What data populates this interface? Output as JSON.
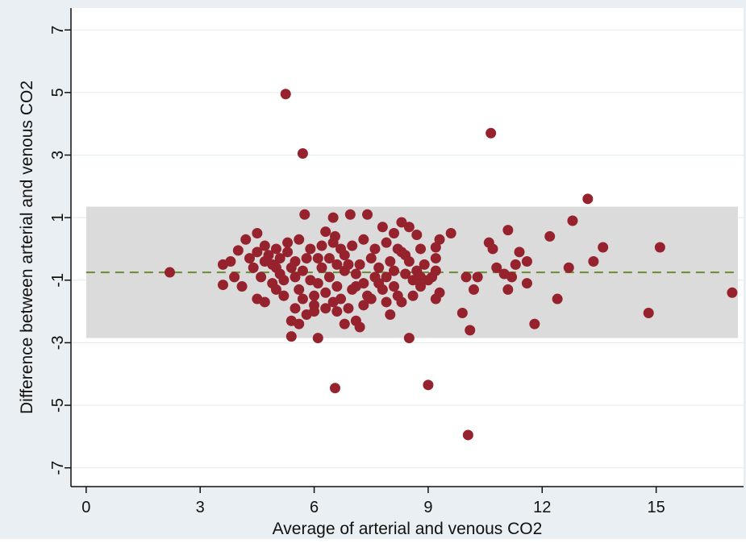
{
  "chart_data": {
    "type": "scatter",
    "title": "",
    "xlabel": "Average of arterial and venous CO2",
    "ylabel": "Difference between arterial and venous CO2",
    "xlim": [
      -0.4,
      17.3
    ],
    "ylim": [
      -7.6,
      7.7
    ],
    "xticks": [
      0,
      3,
      6,
      9,
      12,
      15
    ],
    "yticks": [
      -7,
      -5,
      -3,
      -1,
      1,
      3,
      5,
      7
    ],
    "grid": true,
    "legend": "none",
    "mean_difference": -0.75,
    "limits_of_agreement": [
      -2.85,
      1.35
    ],
    "colors": {
      "background": "#e9eff3",
      "plot_area": "#ffffff",
      "band": "#dbdbdb",
      "mean_line": "#6f8f3a",
      "points": "#95222c",
      "gridline": "#e6edf1"
    },
    "points": [
      [
        2.2,
        -0.75
      ],
      [
        5.25,
        4.95
      ],
      [
        5.7,
        3.05
      ],
      [
        10.65,
        3.7
      ],
      [
        13.2,
        1.6
      ],
      [
        12.8,
        0.9
      ],
      [
        11.1,
        0.6
      ],
      [
        12.2,
        0.4
      ],
      [
        13.6,
        0.05
      ],
      [
        15.1,
        0.05
      ],
      [
        17.0,
        -1.4
      ],
      [
        14.8,
        -2.05
      ],
      [
        12.7,
        -0.6
      ],
      [
        13.35,
        -0.4
      ],
      [
        12.4,
        -1.6
      ],
      [
        11.8,
        -2.4
      ],
      [
        11.6,
        -1.1
      ],
      [
        11.6,
        -0.4
      ],
      [
        11.4,
        -0.1
      ],
      [
        11.3,
        -0.5
      ],
      [
        11.2,
        -0.9
      ],
      [
        11.1,
        -1.3
      ],
      [
        11.0,
        -0.8
      ],
      [
        10.8,
        -0.6
      ],
      [
        10.7,
        0.0
      ],
      [
        10.6,
        0.2
      ],
      [
        10.3,
        -0.9
      ],
      [
        10.2,
        -1.3
      ],
      [
        10.0,
        -0.9
      ],
      [
        9.9,
        -2.05
      ],
      [
        10.1,
        -2.6
      ],
      [
        9.0,
        -4.35
      ],
      [
        10.05,
        -5.95
      ],
      [
        6.55,
        -4.45
      ],
      [
        8.5,
        -2.85
      ],
      [
        6.1,
        -2.85
      ],
      [
        5.4,
        -2.8
      ],
      [
        9.2,
        -1.6
      ],
      [
        9.3,
        -1.4
      ],
      [
        9.0,
        -1.0
      ],
      [
        9.2,
        -0.7
      ],
      [
        9.2,
        -0.3
      ],
      [
        9.2,
        0.05
      ],
      [
        9.3,
        0.3
      ],
      [
        9.6,
        0.5
      ],
      [
        9.1,
        -0.9
      ],
      [
        8.8,
        0.0
      ],
      [
        8.7,
        0.45
      ],
      [
        8.5,
        0.7
      ],
      [
        8.3,
        0.85
      ],
      [
        8.1,
        0.5
      ],
      [
        7.8,
        0.7
      ],
      [
        7.4,
        1.1
      ],
      [
        6.95,
        1.1
      ],
      [
        6.5,
        1.0
      ],
      [
        5.75,
        1.1
      ],
      [
        6.3,
        0.55
      ],
      [
        6.55,
        0.4
      ],
      [
        4.5,
        0.5
      ],
      [
        4.2,
        0.3
      ],
      [
        4.0,
        -0.05
      ],
      [
        3.8,
        -0.4
      ],
      [
        3.6,
        -0.5
      ],
      [
        3.6,
        -1.15
      ],
      [
        3.9,
        -0.9
      ],
      [
        4.1,
        -1.2
      ],
      [
        4.5,
        -1.6
      ],
      [
        4.7,
        -1.7
      ],
      [
        5.0,
        -1.3
      ],
      [
        5.2,
        -1.5
      ],
      [
        5.5,
        -1.9
      ],
      [
        5.6,
        -2.4
      ],
      [
        5.4,
        -2.3
      ],
      [
        5.8,
        -2.1
      ],
      [
        6.0,
        -1.8
      ],
      [
        6.3,
        -1.9
      ],
      [
        6.6,
        -2.0
      ],
      [
        6.8,
        -2.4
      ],
      [
        7.1,
        -2.3
      ],
      [
        7.2,
        -2.5
      ],
      [
        7.5,
        -1.6
      ],
      [
        7.9,
        -1.7
      ],
      [
        8.0,
        -2.1
      ],
      [
        8.3,
        -1.7
      ],
      [
        8.6,
        -1.5
      ],
      [
        8.8,
        -1.2
      ],
      [
        8.9,
        -0.5
      ],
      [
        4.3,
        -0.3
      ],
      [
        4.4,
        -0.6
      ],
      [
        4.6,
        -0.9
      ],
      [
        4.8,
        -0.2
      ],
      [
        4.9,
        -0.5
      ],
      [
        5.1,
        -0.8
      ],
      [
        5.3,
        -0.1
      ],
      [
        5.5,
        -0.4
      ],
      [
        5.7,
        -0.7
      ],
      [
        5.9,
        -1.0
      ],
      [
        6.1,
        -0.3
      ],
      [
        6.2,
        -0.6
      ],
      [
        6.4,
        -0.9
      ],
      [
        6.6,
        -1.2
      ],
      [
        6.8,
        -0.2
      ],
      [
        6.9,
        -0.5
      ],
      [
        7.1,
        -0.8
      ],
      [
        7.3,
        -1.1
      ],
      [
        7.5,
        -0.3
      ],
      [
        7.7,
        -0.6
      ],
      [
        7.9,
        -0.9
      ],
      [
        8.1,
        -1.2
      ],
      [
        8.3,
        -0.1
      ],
      [
        8.5,
        -0.4
      ],
      [
        8.7,
        -0.7
      ],
      [
        4.7,
        0.1
      ],
      [
        5.0,
        0.0
      ],
      [
        5.3,
        0.2
      ],
      [
        5.6,
        0.3
      ],
      [
        5.9,
        0.0
      ],
      [
        6.2,
        0.1
      ],
      [
        6.5,
        0.2
      ],
      [
        6.7,
        0.0
      ],
      [
        7.0,
        0.1
      ],
      [
        7.3,
        0.3
      ],
      [
        7.6,
        0.0
      ],
      [
        7.9,
        0.2
      ],
      [
        8.2,
        0.0
      ],
      [
        8.4,
        -0.2
      ],
      [
        4.9,
        -1.1
      ],
      [
        5.2,
        -1.0
      ],
      [
        5.6,
        -1.3
      ],
      [
        6.0,
        -1.5
      ],
      [
        6.3,
        -1.4
      ],
      [
        6.7,
        -1.6
      ],
      [
        7.0,
        -1.3
      ],
      [
        7.4,
        -1.5
      ],
      [
        7.8,
        -1.3
      ],
      [
        8.2,
        -1.5
      ],
      [
        4.5,
        -0.1
      ],
      [
        4.7,
        -0.4
      ],
      [
        5.1,
        -0.3
      ],
      [
        5.4,
        -0.6
      ],
      [
        5.8,
        -0.3
      ],
      [
        6.4,
        -0.3
      ],
      [
        6.8,
        -0.7
      ],
      [
        7.2,
        -0.5
      ],
      [
        7.6,
        -0.9
      ],
      [
        8.0,
        -0.4
      ],
      [
        8.4,
        -0.8
      ],
      [
        8.8,
        -0.9
      ],
      [
        5.0,
        -0.6
      ],
      [
        5.5,
        -0.9
      ],
      [
        6.1,
        -1.1
      ],
      [
        6.6,
        -0.5
      ],
      [
        7.1,
        -1.2
      ],
      [
        7.7,
        -1.1
      ],
      [
        8.1,
        -0.7
      ],
      [
        8.6,
        -1.0
      ],
      [
        5.7,
        -1.6
      ],
      [
        6.5,
        -1.7
      ],
      [
        7.3,
        -1.8
      ],
      [
        6.9,
        -1.9
      ],
      [
        6.0,
        -2.0
      ]
    ]
  }
}
